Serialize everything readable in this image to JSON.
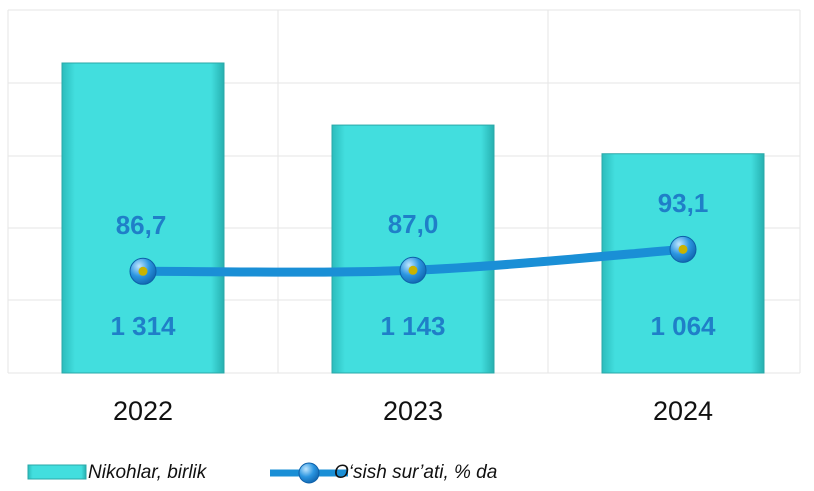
{
  "chart_data": {
    "type": "bar",
    "categories": [
      "2022",
      "2023",
      "2024"
    ],
    "series": [
      {
        "name": "Nikohlar, birlik",
        "type": "bar",
        "color": "#3dd8d8",
        "values": [
          1314,
          1143,
          1064
        ],
        "value_labels": [
          "1 314",
          "1 143",
          "1 064"
        ]
      },
      {
        "name": "O‘sish sur’ati, % da",
        "type": "line",
        "axis": "y2",
        "color": "#1a8fd6",
        "values": [
          86.7,
          87.0,
          93.1
        ],
        "value_labels": [
          "86,7",
          "87,0",
          "93,1"
        ]
      }
    ],
    "ylim": [
      460,
      1460
    ],
    "y2lim": [
      57,
      163
    ]
  }
}
